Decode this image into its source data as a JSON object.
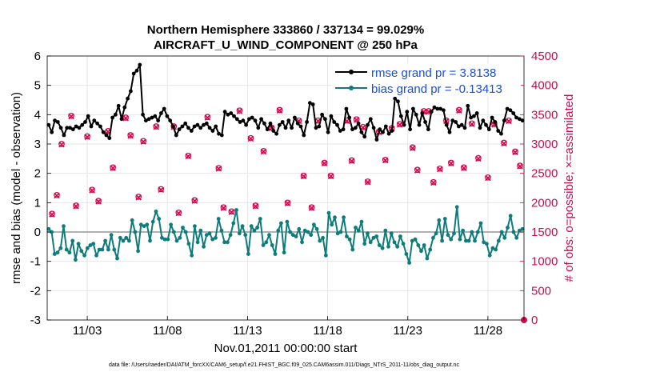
{
  "chart_data": {
    "type": "line",
    "title": "Northern Hemisphere 333860 / 337134 = 99.029%",
    "subtitle": "AIRCRAFT_U_WIND_COMPONENT @ 250 hPa",
    "xlabel": "Nov.01,2011 00:00:00 start",
    "ylabel": "rmse and bias (model - observation)",
    "ylabel_right": "# of obs: o=possible; ×=assimilated",
    "footnote": "data file: /Users/raeder/DAI/ATM_forcXX/CAM6_setup/f.e21.FHIST_BGC.f09_025.CAM6assim.011/Diags_NTrS_2011-11/obs_diag_output.nc",
    "xlim": [
      0.5,
      30.25
    ],
    "ylim": [
      -3,
      6
    ],
    "ylim_right": [
      0,
      4500
    ],
    "xticks": [
      3,
      8,
      13,
      18,
      23,
      28
    ],
    "xtick_labels": [
      "11/03",
      "11/08",
      "11/13",
      "11/18",
      "11/23",
      "11/28"
    ],
    "yticks": [
      -3,
      -2,
      -1,
      0,
      1,
      2,
      3,
      4,
      5,
      6
    ],
    "yticks_right": [
      0,
      500,
      1000,
      1500,
      2000,
      2500,
      3000,
      3500,
      4000,
      4500
    ],
    "grid": true,
    "legend_position": "top-right",
    "colors": {
      "rmse": "#000000",
      "bias": "#0e7c7b",
      "obs": "#cc0b4f",
      "zero_line": "#b0b0b0"
    },
    "series": [
      {
        "name": "rmse grand pr = 3.8138",
        "axis": "left",
        "values": [
          3.65,
          3.4,
          3.8,
          3.75,
          3.55,
          3.3,
          3.55,
          3.55,
          3.5,
          3.6,
          3.55,
          3.65,
          3.75,
          3.95,
          3.6,
          3.8,
          3.7,
          3.6,
          3.4,
          3.3,
          3.2,
          3.9,
          4.0,
          4.3,
          3.85,
          4.25,
          4.55,
          4.8,
          5.4,
          5.5,
          5.7,
          4.0,
          3.8,
          3.85,
          3.9,
          3.95,
          3.8,
          4.05,
          4.2,
          3.95,
          3.8,
          3.6,
          3.3,
          3.5,
          3.6,
          3.7,
          3.55,
          3.45,
          3.6,
          3.65,
          3.55,
          3.65,
          3.7,
          3.55,
          3.45,
          3.6,
          3.35,
          3.3,
          4.1,
          4.0,
          4.05,
          3.95,
          3.85,
          3.75,
          3.8,
          3.65,
          3.85,
          3.9,
          3.8,
          3.55,
          3.85,
          3.7,
          3.5,
          3.7,
          3.45,
          3.35,
          3.65,
          3.75,
          3.55,
          3.8,
          3.55,
          3.9,
          3.7,
          3.6,
          3.3,
          3.75,
          4.4,
          4.35,
          3.55,
          3.6,
          4.0,
          3.85,
          3.4,
          3.95,
          3.75,
          3.65,
          3.45,
          3.5,
          4.2,
          3.9,
          3.5,
          3.55,
          3.7,
          3.4,
          3.25,
          3.65,
          3.85,
          3.55,
          3.15,
          3.5,
          3.4,
          3.6,
          3.35,
          3.45,
          4.55,
          4.45,
          3.95,
          3.65,
          4.1,
          3.5,
          4.2,
          4.0,
          3.65,
          4.05,
          3.75,
          3.5,
          4.1,
          4.25,
          4.2,
          4.2,
          4.15,
          3.65,
          3.4,
          3.8,
          3.75,
          3.6,
          3.65,
          3.55,
          4.3,
          3.9,
          3.95,
          4.05,
          3.55,
          3.8,
          3.65,
          3.5,
          3.9,
          3.75,
          3.45,
          3.35,
          3.8,
          4.2,
          4.15,
          4.05,
          3.9,
          3.85,
          3.8
        ]
      },
      {
        "name": "bias grand pr = -0.13413",
        "axis": "left",
        "values": [
          0.1,
          0.0,
          -0.75,
          -0.7,
          -0.55,
          0.2,
          -0.6,
          -0.7,
          -0.3,
          -0.95,
          -0.4,
          -0.65,
          -0.8,
          -0.55,
          -0.45,
          -0.4,
          -0.8,
          -0.6,
          -0.6,
          -0.3,
          -0.6,
          -0.1,
          -0.6,
          -0.9,
          -0.2,
          -0.3,
          -0.2,
          -0.3,
          0.4,
          0.0,
          -0.65,
          0.25,
          0.2,
          0.25,
          -0.3,
          0.35,
          0.7,
          0.45,
          -0.2,
          -0.25,
          -0.25,
          0.25,
          0.0,
          -0.3,
          -0.2,
          0.15,
          0.0,
          -0.4,
          -0.8,
          0.2,
          -0.35,
          0.05,
          -0.5,
          -0.1,
          -0.05,
          -0.25,
          -0.2,
          0.45,
          0.05,
          -0.35,
          -0.35,
          -0.1,
          0.3,
          0.75,
          -0.05,
          0.2,
          -0.1,
          -0.75,
          0.2,
          0.05,
          0.15,
          0.45,
          -0.45,
          -0.35,
          -0.1,
          -0.45,
          -0.75,
          0.05,
          0.3,
          -0.7,
          0.35,
          0.0,
          -0.1,
          -0.15,
          0.1,
          -0.35,
          0.05,
          0.0,
          -0.1,
          0.25,
          0.1,
          -0.3,
          -0.2,
          -0.8,
          0.65,
          0.25,
          0.5,
          -0.05,
          0.0,
          0.5,
          -0.15,
          -0.25,
          -0.6,
          0.15,
          0.05,
          0.35,
          -0.4,
          -0.05,
          -0.35,
          -0.2,
          -0.15,
          -0.45,
          -0.55,
          0.05,
          -0.5,
          -0.05,
          -0.35,
          -0.5,
          -0.15,
          -0.4,
          -0.75,
          -1.05,
          -0.3,
          -0.25,
          -0.45,
          -0.65,
          -0.45,
          -0.9,
          -0.6,
          -0.2,
          -0.05,
          0.4,
          -0.3,
          0.45,
          -0.1,
          -0.25,
          -0.05,
          0.85,
          -0.25,
          0.05,
          -0.3,
          -0.3,
          0.0,
          -0.3,
          0.0,
          0.3,
          -0.35,
          -0.4,
          -0.8,
          -0.55,
          -0.6,
          -0.3,
          0.0,
          -0.2,
          0.15,
          0.55,
          0.0,
          -0.2,
          0.05,
          0.1
        ]
      },
      {
        "name": "observations possible",
        "axis": "right",
        "marker": "o",
        "x": [
          0.8,
          1.1,
          1.4,
          2.0,
          2.3,
          3.0,
          3.3,
          3.7,
          4.3,
          4.6,
          5.4,
          5.7,
          6.2,
          6.5,
          7.3,
          7.6,
          8.4,
          8.7,
          9.3,
          9.7,
          10.5,
          11.2,
          11.5,
          12.0,
          12.5,
          13.2,
          13.5,
          14.0,
          14.5,
          15.0,
          15.5,
          16.2,
          16.5,
          17.0,
          17.4,
          17.8,
          18.2,
          19.2,
          19.5,
          19.8,
          20.2,
          20.5,
          21.2,
          21.6,
          22.0,
          22.5,
          23.3,
          23.6,
          24.0,
          24.3,
          24.6,
          25.0,
          25.4,
          25.7,
          26.2,
          26.5,
          27.0,
          27.4,
          28.0,
          28.4,
          29.0,
          29.3,
          29.7,
          30.0
        ],
        "values": [
          1810,
          2130,
          3000,
          3480,
          1950,
          3130,
          2220,
          2030,
          3220,
          2600,
          3450,
          3150,
          2100,
          3050,
          3300,
          2230,
          3300,
          1830,
          2800,
          2040,
          3460,
          2590,
          1920,
          1850,
          3570,
          3100,
          1950,
          2880,
          3280,
          3580,
          2000,
          3400,
          2460,
          1920,
          3400,
          2680,
          2460,
          3400,
          2720,
          3420,
          3290,
          2360,
          3210,
          2730,
          3270,
          3340,
          2940,
          2560,
          3560,
          3560,
          2350,
          2580,
          3400,
          2680,
          3580,
          2600,
          3350,
          2760,
          2430,
          3340,
          3020,
          3400,
          2870,
          2630
        ]
      },
      {
        "name": "observations assimilated",
        "axis": "right",
        "marker": "x",
        "x": [
          0.8,
          1.1,
          1.4,
          2.0,
          2.3,
          3.0,
          3.3,
          3.7,
          4.3,
          4.6,
          5.4,
          5.7,
          6.2,
          6.5,
          7.3,
          7.6,
          8.4,
          8.7,
          9.3,
          9.7,
          10.5,
          11.2,
          11.5,
          12.0,
          12.5,
          13.2,
          13.5,
          14.0,
          14.5,
          15.0,
          15.5,
          16.2,
          16.5,
          17.0,
          17.4,
          17.8,
          18.2,
          19.2,
          19.5,
          19.8,
          20.2,
          20.5,
          21.2,
          21.6,
          22.0,
          22.5,
          23.3,
          23.6,
          24.0,
          24.3,
          24.6,
          25.0,
          25.4,
          25.7,
          26.2,
          26.5,
          27.0,
          27.4,
          28.0,
          28.4,
          29.0,
          29.3,
          29.7,
          30.0
        ],
        "values": [
          1800,
          2120,
          2990,
          3470,
          1940,
          3120,
          2210,
          2020,
          3210,
          2590,
          3440,
          3140,
          2090,
          3040,
          3290,
          2220,
          3290,
          1820,
          2790,
          2030,
          3450,
          2580,
          1910,
          1840,
          3560,
          3090,
          1940,
          2870,
          3270,
          3570,
          1990,
          3390,
          2450,
          1910,
          3390,
          2670,
          2450,
          3390,
          2710,
          3410,
          3280,
          2350,
          3200,
          2720,
          3260,
          3330,
          2930,
          2550,
          3550,
          3550,
          2340,
          2570,
          3390,
          2670,
          3570,
          2590,
          3340,
          2750,
          2420,
          3330,
          3010,
          3390,
          2860,
          2620
        ]
      }
    ]
  }
}
